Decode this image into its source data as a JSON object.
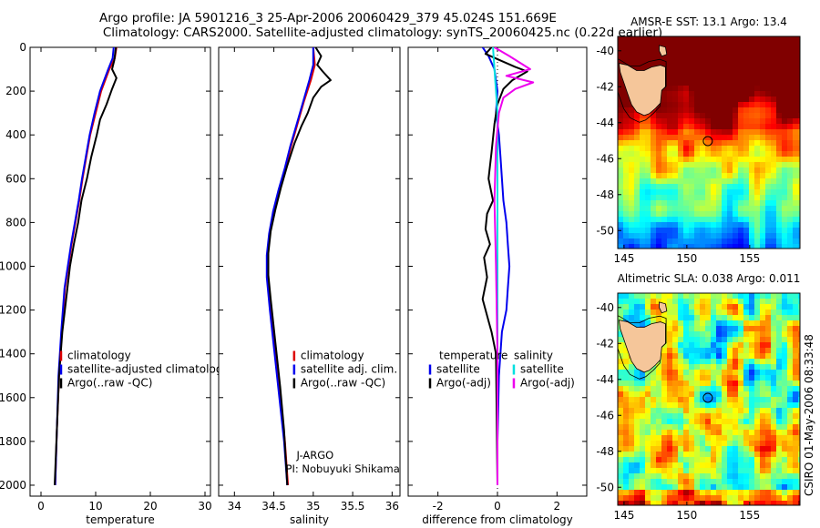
{
  "title_line1": "Argo profile: JA 5901216_3 25-Apr-2006 20060429_379 45.024S 151.669E",
  "title_line2": "Climatology: CARS2000. Satellite-adjusted climatology: synTS_20060425.nc (0.22d earlier)",
  "footer": "CSIRO 01-May-2006 08:33:48",
  "colors": {
    "climatology": "#dd0000",
    "satellite": "#0000ee",
    "argo": "#000000",
    "temperature": "#000000",
    "satellite_diff_temp": "#0000ee",
    "salinity_sat": "#00e0e0",
    "salinity_argo": "#ee00ee"
  },
  "chart_data": [
    {
      "type": "line",
      "id": "temperature",
      "xlabel": "temperature",
      "xlim": [
        -2,
        31
      ],
      "xticks": [
        0,
        10,
        20,
        30
      ],
      "ylim": [
        2050,
        0
      ],
      "yticks": [
        0,
        200,
        400,
        600,
        800,
        1000,
        1200,
        1400,
        1600,
        1800,
        2000
      ],
      "legend": {
        "placement": "lower-right",
        "entries": [
          "climatology",
          "satellite-adjusted climatology",
          "Argo(..raw -QC)"
        ]
      },
      "series": [
        {
          "name": "climatology",
          "color": "#dd0000",
          "x": [
            13.8,
            13.5,
            12.5,
            11.0,
            10.0,
            9.0,
            8.3,
            7.6,
            7.0,
            6.3,
            5.6,
            5.0,
            4.4,
            3.8,
            3.3,
            2.9,
            2.6
          ],
          "y": [
            0,
            50,
            100,
            200,
            300,
            400,
            500,
            600,
            700,
            800,
            900,
            1000,
            1100,
            1300,
            1500,
            1750,
            2000
          ]
        },
        {
          "name": "satellite-adjusted climatology",
          "color": "#0000ee",
          "x": [
            13.3,
            13.1,
            12.3,
            10.8,
            9.8,
            8.9,
            8.2,
            7.5,
            6.9,
            6.2,
            5.5,
            4.9,
            4.3,
            3.7,
            3.2,
            2.9,
            2.6
          ],
          "y": [
            0,
            50,
            100,
            200,
            300,
            400,
            500,
            600,
            700,
            800,
            900,
            1000,
            1100,
            1300,
            1500,
            1750,
            2000
          ]
        },
        {
          "name": "Argo(..raw -QC)",
          "color": "#000000",
          "x": [
            13.7,
            13.4,
            13.0,
            13.8,
            13.0,
            12.0,
            10.8,
            10.2,
            9.2,
            8.4,
            7.4,
            6.8,
            6.0,
            5.3,
            4.6,
            3.9,
            3.3,
            2.9,
            2.5
          ],
          "y": [
            0,
            60,
            100,
            140,
            190,
            260,
            330,
            400,
            500,
            600,
            700,
            800,
            900,
            1000,
            1150,
            1300,
            1500,
            1750,
            2000
          ]
        }
      ]
    },
    {
      "type": "line",
      "id": "salinity",
      "xlabel": "salinity",
      "xlim": [
        33.8,
        36.1
      ],
      "xticks": [
        34,
        34.5,
        35,
        35.5,
        36
      ],
      "ylim": [
        2050,
        0
      ],
      "yticks": [
        0,
        200,
        400,
        600,
        800,
        1000,
        1200,
        1400,
        1600,
        1800,
        2000
      ],
      "legend": {
        "placement": "lower-right",
        "entries": [
          "climatology",
          "satellite adj. clim.",
          "Argo(..raw -QC)"
        ]
      },
      "annotation": [
        "J-ARGO",
        "PI: Nobuyuki Shikama"
      ],
      "series": [
        {
          "name": "climatology",
          "color": "#dd0000",
          "x": [
            35.0,
            35.02,
            34.97,
            34.88,
            34.8,
            34.72,
            34.65,
            34.57,
            34.5,
            34.45,
            34.42,
            34.42,
            34.46,
            34.52,
            34.58,
            34.64,
            34.68
          ],
          "y": [
            0,
            80,
            150,
            250,
            350,
            450,
            550,
            650,
            750,
            850,
            950,
            1050,
            1200,
            1400,
            1600,
            1800,
            2000
          ]
        },
        {
          "name": "satellite adj. clim.",
          "color": "#0000ee",
          "x": [
            35.0,
            35.0,
            34.95,
            34.87,
            34.79,
            34.71,
            34.64,
            34.56,
            34.49,
            34.44,
            34.41,
            34.41,
            34.45,
            34.51,
            34.57,
            34.63,
            34.67
          ],
          "y": [
            0,
            80,
            150,
            250,
            350,
            450,
            550,
            650,
            750,
            850,
            950,
            1050,
            1200,
            1400,
            1600,
            1800,
            2000
          ]
        },
        {
          "name": "Argo(..raw -QC)",
          "color": "#000000",
          "x": [
            35.03,
            35.1,
            35.05,
            35.12,
            35.22,
            35.1,
            35.0,
            34.93,
            34.85,
            34.76,
            34.67,
            34.59,
            34.52,
            34.46,
            34.43,
            34.43,
            34.46,
            34.52,
            34.58,
            34.63,
            34.67
          ],
          "y": [
            0,
            40,
            80,
            110,
            150,
            180,
            230,
            300,
            360,
            440,
            540,
            640,
            740,
            840,
            940,
            1040,
            1150,
            1350,
            1550,
            1750,
            2000
          ]
        }
      ]
    },
    {
      "type": "line",
      "id": "difference",
      "xlabel": "difference from climatology",
      "xlim": [
        -3,
        3
      ],
      "xticks": [
        -2,
        0,
        2
      ],
      "ylim": [
        2050,
        0
      ],
      "yticks": [
        0,
        200,
        400,
        600,
        800,
        1000,
        1200,
        1400,
        1600,
        1800,
        2000
      ],
      "legend": {
        "placement": "lower",
        "groups": [
          {
            "title": "temperature",
            "entries": [
              "satellite",
              "Argo(-adj)"
            ]
          },
          {
            "title": "salinity",
            "entries": [
              "satellite",
              "Argo(-adj)"
            ]
          }
        ]
      },
      "series": [
        {
          "name": "temperature satellite",
          "color": "#0000ee",
          "x": [
            -0.5,
            -0.3,
            -0.1,
            0.0,
            -0.05,
            0.05,
            0.1,
            0.15,
            0.2,
            0.3,
            0.35,
            0.4,
            0.35,
            0.3,
            0.15,
            0.05,
            0.0,
            0.0
          ],
          "y": [
            0,
            40,
            100,
            200,
            300,
            400,
            500,
            600,
            700,
            800,
            900,
            1000,
            1100,
            1200,
            1300,
            1500,
            1800,
            2000
          ]
        },
        {
          "name": "temperature Argo(-adj)",
          "color": "#000000",
          "x": [
            -0.2,
            -0.4,
            0.1,
            0.6,
            1.0,
            0.5,
            0.2,
            0.0,
            -0.1,
            -0.2,
            -0.3,
            -0.15,
            -0.35,
            -0.4,
            -0.25,
            -0.45,
            -0.35,
            -0.5,
            -0.3,
            -0.2,
            -0.05,
            0.0
          ],
          "y": [
            0,
            30,
            60,
            90,
            110,
            150,
            190,
            260,
            350,
            480,
            600,
            700,
            760,
            830,
            900,
            960,
            1050,
            1150,
            1250,
            1300,
            1400,
            2000
          ]
        },
        {
          "name": "salinity satellite",
          "color": "#00e0e0",
          "x": [
            -0.15,
            -0.1,
            -0.05,
            0.0,
            0.0,
            0.0,
            0.0,
            0.0,
            0.0
          ],
          "y": [
            0,
            100,
            200,
            300,
            500,
            800,
            1200,
            1600,
            2000
          ]
        },
        {
          "name": "salinity Argo(-adj)",
          "color": "#ee00ee",
          "x": [
            -0.1,
            0.4,
            1.1,
            0.3,
            1.2,
            0.6,
            0.2,
            0.05,
            -0.05,
            -0.1,
            -0.05,
            0.0,
            0.0
          ],
          "y": [
            0,
            40,
            100,
            130,
            160,
            190,
            230,
            300,
            450,
            700,
            1000,
            1400,
            2000
          ]
        }
      ]
    },
    {
      "type": "heatmap",
      "id": "sst_map",
      "title": "AMSR-E SST: 13.1  Argo: 13.4",
      "xlim": [
        144.5,
        159
      ],
      "xticks": [
        145,
        150,
        155
      ],
      "ylim": [
        -51,
        -39.2
      ],
      "yticks": [
        -40,
        -42,
        -44,
        -46,
        -48,
        -50
      ],
      "marker": {
        "lon": 151.669,
        "lat": -45.024
      }
    },
    {
      "type": "heatmap",
      "id": "sla_map",
      "title": "Altimetric SLA: 0.038  Argo: 0.011",
      "xlim": [
        144.5,
        159
      ],
      "xticks": [
        145,
        150,
        155
      ],
      "ylim": [
        -51,
        -39.2
      ],
      "yticks": [
        -40,
        -42,
        -44,
        -46,
        -48,
        -50
      ],
      "marker": {
        "lon": 151.669,
        "lat": -45.024
      }
    }
  ]
}
